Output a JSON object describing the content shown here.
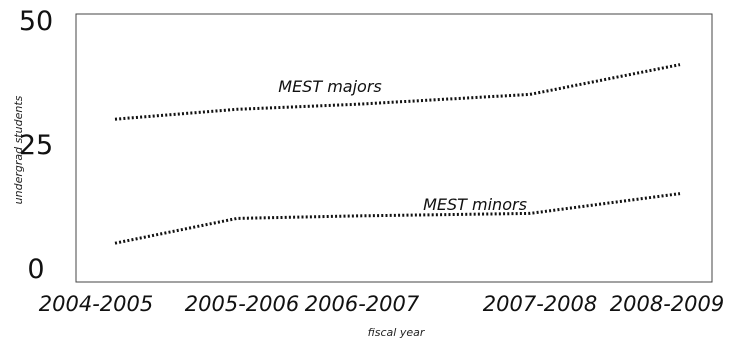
{
  "chart_data": {
    "type": "line",
    "categories": [
      "2004-2005",
      "2005-2006",
      "2006-2007",
      "2007-2008",
      "2008-2009"
    ],
    "series": [
      {
        "name": "MEST majors",
        "values": [
          30,
          32,
          33,
          35,
          41
        ]
      },
      {
        "name": "MEST minors",
        "values": [
          5,
          10,
          10.5,
          11,
          15
        ]
      }
    ],
    "xlabel": "fiscal year",
    "ylabel": "undergrad students",
    "ylim": [
      0,
      50
    ],
    "yticks": [
      0,
      25,
      50
    ],
    "grid": false,
    "legend": "inline",
    "line_style": "dotted",
    "colors": {
      "line": "#111111",
      "frame": "#444444",
      "text": "#111111"
    }
  }
}
